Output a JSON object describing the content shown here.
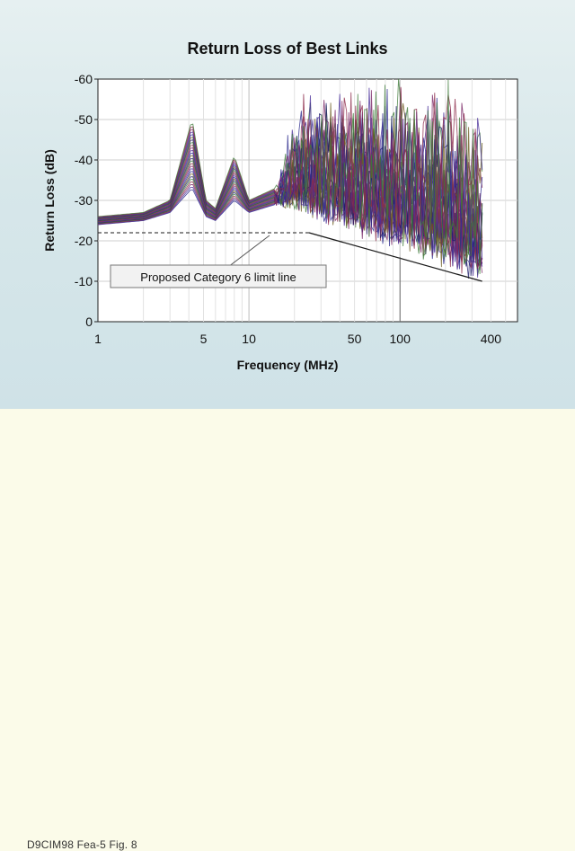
{
  "chart_data": {
    "type": "line",
    "title": "Return Loss of Best Links",
    "xlabel": "Frequency (MHz)",
    "ylabel": "Return Loss (dB)",
    "x_scale": "log",
    "xlim": [
      1,
      600
    ],
    "ylim": [
      0,
      -60
    ],
    "x_ticks": [
      1,
      5,
      10,
      50,
      100,
      400
    ],
    "x_tick_labels": [
      "1",
      "5",
      "10",
      "50",
      "100",
      "400"
    ],
    "y_ticks": [
      0,
      -10,
      -20,
      -30,
      -40,
      -50,
      -60
    ],
    "y_tick_labels": [
      "0",
      "-10",
      "-20",
      "-30",
      "-40",
      "-50",
      "-60"
    ],
    "grid": true,
    "series": [
      {
        "role": "limit",
        "color": "#1a1a1a",
        "points": [
          [
            1,
            -22
          ],
          [
            25,
            -22
          ],
          [
            350,
            -10
          ]
        ]
      },
      {
        "role": "measured-envelope-upper",
        "color": "#2c2a8c",
        "points": [
          [
            1,
            -26
          ],
          [
            2,
            -27
          ],
          [
            3,
            -30
          ],
          [
            4.2,
            -50
          ],
          [
            5.2,
            -30
          ],
          [
            6,
            -28
          ],
          [
            8,
            -41
          ],
          [
            10,
            -30
          ],
          [
            15,
            -33
          ],
          [
            18,
            -47
          ],
          [
            25,
            -60
          ],
          [
            50,
            -60
          ],
          [
            100,
            -60
          ],
          [
            200,
            -60
          ],
          [
            350,
            -52
          ]
        ]
      },
      {
        "role": "measured-envelope-lower",
        "color": "#2c2a8c",
        "points": [
          [
            1,
            -24
          ],
          [
            2,
            -25
          ],
          [
            3,
            -27
          ],
          [
            4.2,
            -33
          ],
          [
            5.2,
            -26
          ],
          [
            6,
            -25
          ],
          [
            8,
            -30
          ],
          [
            10,
            -27
          ],
          [
            15,
            -29
          ],
          [
            20,
            -29
          ],
          [
            40,
            -25
          ],
          [
            100,
            -20
          ],
          [
            200,
            -16
          ],
          [
            350,
            -12
          ]
        ]
      }
    ],
    "annotation": "Proposed Category 6 limit line",
    "colors": {
      "traces": [
        "#2c2a8c",
        "#4a2f9a",
        "#7a2866",
        "#8c2a4a",
        "#3f7a3a",
        "#1d1a6a",
        "#6a5a1e"
      ]
    }
  },
  "caption": "D9CIM98 Fea-5 Fig. 8"
}
